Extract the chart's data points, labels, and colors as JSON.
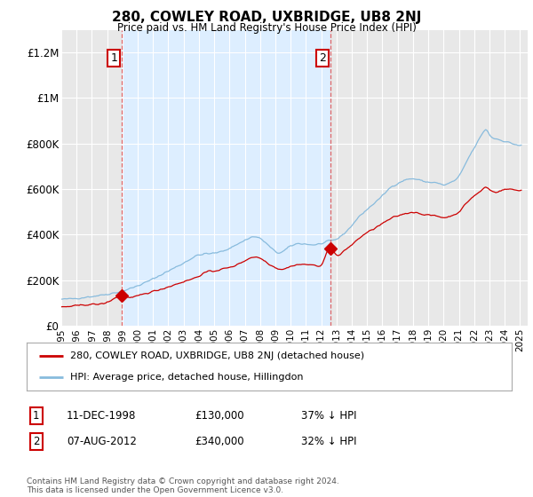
{
  "title": "280, COWLEY ROAD, UXBRIDGE, UB8 2NJ",
  "subtitle": "Price paid vs. HM Land Registry's House Price Index (HPI)",
  "ylabel_ticks": [
    "£0",
    "£200K",
    "£400K",
    "£600K",
    "£800K",
    "£1M",
    "£1.2M"
  ],
  "ytick_values": [
    0,
    200000,
    400000,
    600000,
    800000,
    1000000,
    1200000
  ],
  "ylim": [
    0,
    1300000
  ],
  "xlim_start": 1995.3,
  "xlim_end": 2025.5,
  "hpi_color": "#88bbdd",
  "sale_color": "#cc0000",
  "sale_marker_color": "#cc0000",
  "background_color": "#e8e8e8",
  "shaded_color": "#ddeeff",
  "grid_color": "#ffffff",
  "vline_color": "#dd4444",
  "sale1_x": 1998.94,
  "sale1_y": 130000,
  "sale2_x": 2012.59,
  "sale2_y": 340000,
  "legend_line1": "280, COWLEY ROAD, UXBRIDGE, UB8 2NJ (detached house)",
  "legend_line2": "HPI: Average price, detached house, Hillingdon",
  "annotation1_label": "1",
  "annotation2_label": "2",
  "table_row1": [
    "1",
    "11-DEC-1998",
    "£130,000",
    "37% ↓ HPI"
  ],
  "table_row2": [
    "2",
    "07-AUG-2012",
    "£340,000",
    "32% ↓ HPI"
  ],
  "footer": "Contains HM Land Registry data © Crown copyright and database right 2024.\nThis data is licensed under the Open Government Licence v3.0.",
  "xtick_years": [
    1995,
    1996,
    1997,
    1998,
    1999,
    2000,
    2001,
    2002,
    2003,
    2004,
    2005,
    2006,
    2007,
    2008,
    2009,
    2010,
    2011,
    2012,
    2013,
    2014,
    2015,
    2016,
    2017,
    2018,
    2019,
    2020,
    2021,
    2022,
    2023,
    2024,
    2025
  ]
}
